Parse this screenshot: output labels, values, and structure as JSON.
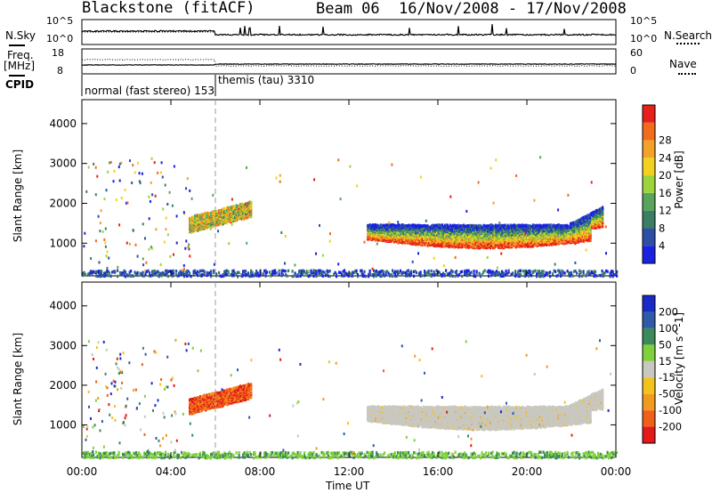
{
  "header": {
    "radar": "Blackstone (fitACF)",
    "beam": "Beam 06",
    "dates": "16/Nov/2008 - 17/Nov/2008"
  },
  "panels": {
    "noise": {
      "left_label": "N.Sky",
      "left_ticks": [
        "10^5",
        "10^0"
      ],
      "right_label": "N.Search",
      "right_ticks": [
        "10^5",
        "10^0"
      ]
    },
    "freq": {
      "left_label_line1": "Freq.",
      "left_label_line2": "[MHz]",
      "left_ticks": [
        "18",
        "8"
      ],
      "right_label": "Nave",
      "right_ticks": [
        "60",
        "0"
      ]
    },
    "cpid": {
      "label": "CPID",
      "modes": [
        {
          "name": "normal (fast stereo) 153",
          "start_hour": 0.0
        },
        {
          "name": "themis (tau) 3310",
          "start_hour": 6.0
        }
      ]
    }
  },
  "chart_data": [
    {
      "type": "heatmap",
      "title": "",
      "xlabel": "Time UT",
      "ylabel": "Slant Range [km]",
      "x_ticks": [
        "00:00",
        "04:00",
        "08:00",
        "12:00",
        "16:00",
        "20:00",
        "00:00"
      ],
      "x_range_hours": [
        0,
        24
      ],
      "ylim": [
        180,
        4600
      ],
      "y_ticks": [
        1000,
        2000,
        3000,
        4000
      ],
      "colorbar": {
        "label": "Power [dB]",
        "ticks": [
          "4",
          "8",
          "12",
          "16",
          "20",
          "24",
          "28"
        ],
        "range": [
          0,
          30
        ],
        "colors": [
          "#1a22e0",
          "#2e4fa6",
          "#3a7f64",
          "#5aa35a",
          "#9bd43c",
          "#f2d21e",
          "#f4a12a",
          "#f26c1c",
          "#e8201c"
        ]
      },
      "regions": [
        {
          "time_start_hour": 4.8,
          "time_end_hour": 7.6,
          "range_km": [
            1400,
            2100
          ],
          "power_db": [
            6,
            26
          ]
        },
        {
          "time_start_hour": 12.8,
          "time_end_hour": 23.4,
          "range_km": [
            850,
            2100
          ],
          "power_db": [
            4,
            30
          ]
        },
        {
          "time_start_hour": 0.0,
          "time_end_hour": 24.0,
          "range_km": [
            180,
            400
          ],
          "power_db": [
            2,
            8
          ]
        }
      ]
    },
    {
      "type": "heatmap",
      "title": "",
      "xlabel": "Time UT",
      "ylabel": "Slant Range [km]",
      "x_ticks": [
        "00:00",
        "04:00",
        "08:00",
        "12:00",
        "16:00",
        "20:00",
        "00:00"
      ],
      "x_range_hours": [
        0,
        24
      ],
      "ylim": [
        180,
        4600
      ],
      "y_ticks": [
        1000,
        2000,
        3000,
        4000
      ],
      "colorbar": {
        "label": "Velocity [m s^-1]",
        "ticks": [
          "200",
          "100",
          "50",
          "15",
          "-15",
          "-50",
          "-100",
          "-200"
        ],
        "range": [
          -250,
          250
        ],
        "colors": [
          "#1a2ac8",
          "#2f5aa8",
          "#3b8a5a",
          "#7ed13a",
          "#c8c8c0",
          "#f2c21e",
          "#f29a1e",
          "#f0601a",
          "#e41a1a"
        ]
      },
      "regions": [
        {
          "time_start_hour": 4.8,
          "time_end_hour": 7.6,
          "range_km": [
            1400,
            2100
          ],
          "velocity_ms": [
            -250,
            -60
          ]
        },
        {
          "time_start_hour": 12.8,
          "time_end_hour": 23.4,
          "range_km": [
            850,
            2100
          ],
          "velocity_ms": [
            -15,
            15
          ]
        },
        {
          "time_start_hour": 0.0,
          "time_end_hour": 24.0,
          "range_km": [
            180,
            400
          ],
          "velocity_ms": [
            15,
            60
          ]
        }
      ]
    }
  ]
}
